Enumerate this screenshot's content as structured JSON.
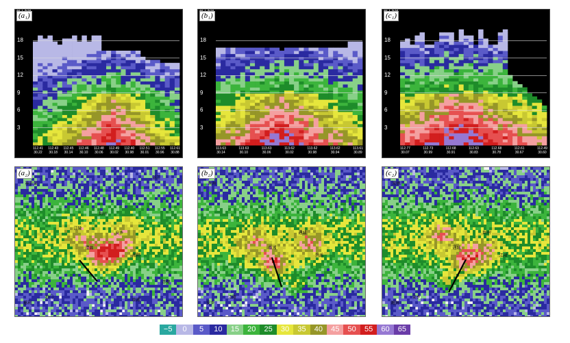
{
  "cross_sections": [
    {
      "id": "a1",
      "label": "(a₁)",
      "alt_label": "ALT KM",
      "y_ticks": [
        "18",
        "15",
        "12",
        "9",
        "6",
        "3"
      ],
      "x_ticks": [
        [
          "112.41",
          "30.22"
        ],
        [
          "112.43",
          "30.18"
        ],
        [
          "112.45",
          "30.14"
        ],
        [
          "112.46",
          "30.10"
        ],
        [
          "112.48",
          "30.06"
        ],
        [
          "112.49",
          "30.02"
        ],
        [
          "112.40",
          "30.98"
        ],
        [
          "112.51",
          "30.01"
        ],
        [
          "112.55",
          "30.96"
        ],
        [
          "112.61",
          "30.88"
        ]
      ]
    },
    {
      "id": "b1",
      "label": "(b₁)",
      "alt_label": "ALT KM",
      "y_ticks": [
        "18",
        "15",
        "12",
        "9",
        "6",
        "3"
      ],
      "x_ticks": [
        [
          "113.63",
          "30.14"
        ],
        [
          "113.63",
          "30.10"
        ],
        [
          "113.63",
          "30.06"
        ],
        [
          "113.62",
          "30.02"
        ],
        [
          "113.62",
          "30.98"
        ],
        [
          "113.62",
          "30.94"
        ],
        [
          "113.61",
          "30.89"
        ]
      ]
    },
    {
      "id": "c1",
      "label": "(c₁)",
      "alt_label": "ALT KM",
      "y_ticks": [
        "18",
        "15",
        "12",
        "9",
        "6",
        "3"
      ],
      "x_ticks": [
        [
          "112.77",
          "30.07"
        ],
        [
          "112.73",
          "30.99"
        ],
        [
          "112.68",
          "30.91"
        ],
        [
          "112.63",
          "30.83"
        ],
        [
          "112.68",
          "30.78"
        ],
        [
          "112.61",
          "30.67"
        ],
        [
          "112.49",
          "30.60"
        ]
      ]
    }
  ],
  "maps": [
    {
      "id": "a2",
      "label": "(a₂)",
      "places": [
        "神农架",
        "石门",
        "慈利",
        "澧县",
        "安乡",
        "湘阴",
        "江陵",
        "荆州",
        "赤壁",
        "临湘",
        "浙江"
      ]
    },
    {
      "id": "b2",
      "label": "(b₂)",
      "places": [
        "荆州",
        "江陵",
        "安乡",
        "临湘",
        "通城",
        "洪湖"
      ]
    },
    {
      "id": "c2",
      "label": "(c₂)",
      "places": [
        "常德",
        "安乡",
        "湘阴",
        "通城",
        "荆州",
        "江陵"
      ]
    }
  ],
  "legend": {
    "values": [
      "−5",
      "0",
      "5",
      "10",
      "15",
      "20",
      "25",
      "30",
      "35",
      "40",
      "45",
      "50",
      "55",
      "60",
      "65"
    ],
    "colors": [
      "#2aa8a0",
      "#b8b8e6",
      "#5a5ac8",
      "#2a2aa0",
      "#88d088",
      "#3cb43c",
      "#1e8c2a",
      "#e6e63c",
      "#c8c832",
      "#969628",
      "#f4a0a0",
      "#e65050",
      "#d21e1e",
      "#9678d2",
      "#6a3ca8"
    ]
  },
  "chart_data": [
    {
      "type": "heatmap",
      "panel": "a1",
      "ylabel": "ALT KM",
      "ylim": [
        0,
        21
      ],
      "z_units": "dBZ"
    },
    {
      "type": "heatmap",
      "panel": "b1",
      "ylabel": "ALT KM",
      "ylim": [
        0,
        21
      ],
      "z_units": "dBZ"
    },
    {
      "type": "heatmap",
      "panel": "c1",
      "ylabel": "ALT KM",
      "ylim": [
        0,
        21
      ],
      "z_units": "dBZ"
    },
    {
      "type": "heatmap",
      "panel": "a2",
      "z_units": "dBZ"
    },
    {
      "type": "heatmap",
      "panel": "b2",
      "z_units": "dBZ"
    },
    {
      "type": "heatmap",
      "panel": "c2",
      "z_units": "dBZ"
    }
  ]
}
